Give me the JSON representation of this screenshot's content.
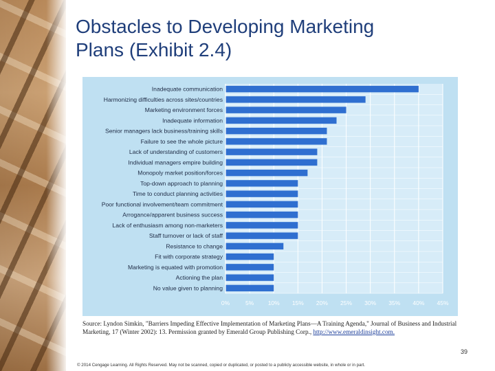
{
  "slide": {
    "title_line1": "Obstacles to Developing Marketing",
    "title_line2": "Plans (Exhibit 2.4)",
    "page_number": "39",
    "footer": "© 2014 Cengage Learning. All Rights Reserved. May not be scanned, copied or duplicated, or posted to a publicly accessible website, in whole or in part.",
    "source_text": "Source: Lyndon Simkin, \"Barriers Impeding Effective Implementation of Marketing Plans—A Training Agenda,\" Journal of Business and Industrial Marketing, 17 (Winter 2002): 13. Permission granted by Emerald Group Publishing Corp.,",
    "source_link": "http://www.emeraldinsight.com."
  },
  "chart_data": {
    "type": "bar",
    "orientation": "horizontal",
    "title": "",
    "xlabel": "",
    "ylabel": "",
    "xlim": [
      0,
      45
    ],
    "ticks": [
      0,
      5,
      10,
      15,
      20,
      25,
      30,
      35,
      40,
      45
    ],
    "tick_labels": [
      "0%",
      "5%",
      "10%",
      "15%",
      "20%",
      "25%",
      "30%",
      "35%",
      "40%",
      "45%"
    ],
    "categories": [
      "Inadequate communication",
      "Harmonizing difficulties across sites/countries",
      "Marketing environment forces",
      "Inadequate information",
      "Senior managers lack business/training skills",
      "Failure to see the whole picture",
      "Lack of understanding of customers",
      "Individual managers empire building",
      "Monopoly market position/forces",
      "Top-down approach to planning",
      "Time to conduct planning activities",
      "Poor functional involvement/team commitment",
      "Arrogance/apparent business success",
      "Lack of enthusiasm among non-marketers",
      "Staff turnover or lack of staff",
      "Resistance to change",
      "Fit with corporate strategy",
      "Marketing is equated with promotion",
      "Actioning the plan",
      "No value given to planning"
    ],
    "values": [
      40,
      29,
      25,
      23,
      21,
      21,
      19,
      19,
      17,
      15,
      15,
      15,
      15,
      15,
      15,
      12,
      10,
      10,
      10,
      10
    ],
    "bar_color": "#2f6fd0",
    "background_color": "#bfe0f2",
    "grid": true
  }
}
